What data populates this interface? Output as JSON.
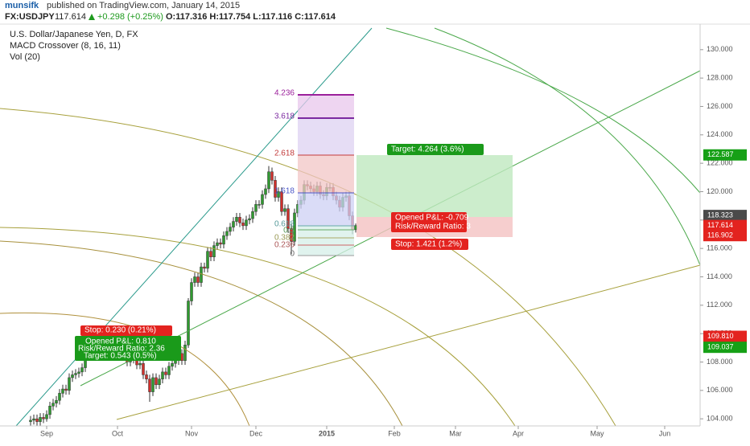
{
  "header": {
    "author": "munsifk",
    "published": "published on TradingView.com, January 14, 2015",
    "symbol": "FX:USDJPY",
    "last": 117.614,
    "change": "+0.298 (+0.25%)",
    "ohlc": "O:117.316 H:117.754 L:117.116 C:117.614"
  },
  "chart_data": {
    "type": "candlestick",
    "title": "U.S. Dollar/Japanese Yen, D, FX",
    "indicators": [
      "MACD Crossover (8, 16, 11)",
      "Vol (20)"
    ],
    "up_color": "#2f9a2f",
    "down_color": "#cf2f2b",
    "x": [
      0,
      1,
      2,
      3,
      4,
      5,
      6,
      7,
      8,
      9,
      10,
      11,
      12,
      13,
      14,
      15,
      16,
      17,
      18,
      19,
      20,
      21,
      22,
      23,
      24,
      25,
      26,
      27,
      28,
      29,
      30,
      31,
      32,
      33,
      34,
      35,
      36,
      37,
      38,
      39,
      40,
      41,
      42,
      43,
      44,
      45,
      46,
      47,
      48,
      49,
      50,
      51,
      52,
      53,
      54,
      55,
      56,
      57,
      58,
      59,
      60,
      61,
      62,
      63,
      64,
      65,
      66,
      67,
      68,
      69,
      70,
      71,
      72,
      73,
      74,
      75,
      76,
      77,
      78,
      79,
      80,
      81,
      82,
      83,
      84,
      85,
      86,
      87,
      88,
      89,
      90,
      91,
      92,
      93,
      94,
      95,
      96,
      97,
      98,
      99,
      100,
      101
    ],
    "open": [
      103.8,
      103.9,
      104.0,
      103.8,
      104.1,
      104.0,
      104.3,
      104.9,
      105.1,
      105.3,
      105.8,
      106.1,
      106.0,
      106.9,
      107.1,
      107.2,
      107.3,
      107.6,
      108.6,
      108.9,
      109.0,
      108.8,
      108.7,
      108.9,
      108.8,
      109.5,
      109.3,
      109.7,
      109.6,
      108.5,
      108.9,
      108.0,
      108.8,
      108.2,
      107.8,
      107.9,
      107.1,
      106.8,
      105.9,
      106.9,
      106.4,
      106.8,
      107.3,
      107.1,
      107.7,
      107.9,
      108.1,
      108.6,
      108.1,
      109.2,
      112.3,
      113.6,
      114.0,
      113.6,
      114.7,
      114.6,
      115.8,
      115.4,
      116.2,
      116.4,
      116.3,
      116.9,
      117.2,
      117.5,
      117.9,
      118.2,
      117.8,
      117.6,
      118.0,
      118.1,
      118.6,
      119.1,
      119.1,
      119.8,
      120.2,
      121.4,
      120.8,
      119.6,
      120.0,
      118.6,
      118.8,
      117.4,
      116.5,
      118.5,
      119.1,
      119.4,
      120.5,
      120.4,
      120.2,
      120.0,
      120.4,
      119.8,
      119.7,
      120.3,
      120.3,
      119.7,
      119.4,
      118.9,
      119.6,
      119.7,
      118.3,
      117.316
    ],
    "high": [
      104.2,
      104.3,
      104.3,
      104.4,
      104.4,
      104.6,
      105.2,
      105.4,
      105.6,
      106.1,
      106.4,
      106.4,
      107.2,
      107.4,
      107.5,
      107.6,
      107.9,
      108.9,
      109.2,
      109.4,
      109.3,
      109.1,
      109.2,
      109.2,
      109.8,
      109.8,
      110.0,
      110.1,
      109.9,
      109.2,
      109.2,
      109.1,
      109.1,
      108.5,
      108.2,
      108.2,
      107.4,
      107.1,
      107.2,
      107.2,
      107.1,
      107.6,
      107.6,
      108.0,
      108.2,
      108.4,
      108.9,
      108.9,
      109.5,
      112.5,
      113.9,
      114.3,
      114.3,
      115.0,
      115.0,
      116.1,
      116.1,
      116.5,
      116.7,
      116.7,
      117.2,
      117.5,
      117.8,
      118.2,
      118.5,
      118.5,
      118.1,
      118.3,
      118.4,
      118.9,
      119.4,
      119.4,
      120.1,
      120.5,
      121.8,
      121.7,
      121.1,
      120.3,
      120.3,
      119.1,
      119.1,
      117.7,
      118.8,
      119.4,
      119.7,
      120.8,
      120.8,
      120.7,
      120.5,
      120.7,
      120.7,
      120.1,
      120.6,
      120.6,
      120.6,
      120.0,
      119.7,
      119.9,
      120.0,
      120.0,
      118.6,
      117.754
    ],
    "low": [
      103.5,
      103.6,
      103.5,
      103.5,
      103.7,
      103.8,
      104.0,
      104.6,
      104.8,
      105.0,
      105.5,
      105.7,
      105.7,
      106.6,
      106.8,
      106.9,
      107.0,
      107.3,
      108.3,
      108.6,
      108.5,
      108.4,
      108.4,
      108.5,
      108.5,
      109.0,
      109.0,
      109.3,
      108.2,
      108.2,
      107.7,
      107.7,
      107.9,
      107.5,
      107.5,
      106.8,
      106.5,
      105.2,
      105.6,
      106.1,
      106.1,
      106.5,
      106.8,
      106.8,
      107.4,
      107.6,
      107.8,
      107.8,
      107.8,
      109.0,
      112.0,
      113.3,
      113.3,
      113.3,
      114.3,
      114.3,
      115.1,
      115.1,
      115.9,
      116.0,
      116.0,
      116.6,
      116.9,
      117.2,
      117.6,
      117.5,
      117.3,
      117.3,
      117.7,
      117.8,
      118.3,
      118.8,
      118.8,
      119.5,
      119.9,
      120.5,
      119.3,
      119.3,
      118.3,
      118.3,
      117.1,
      115.6,
      116.2,
      118.2,
      118.8,
      119.1,
      120.1,
      119.9,
      119.7,
      119.7,
      119.5,
      119.4,
      119.4,
      120.0,
      119.4,
      119.1,
      118.6,
      118.6,
      119.3,
      118.0,
      117.0,
      117.116
    ],
    "close": [
      103.9,
      104.0,
      103.8,
      104.1,
      104.0,
      104.3,
      104.9,
      105.1,
      105.3,
      105.8,
      106.1,
      106.0,
      106.9,
      107.1,
      107.2,
      107.3,
      107.6,
      108.6,
      108.9,
      109.0,
      108.8,
      108.7,
      108.9,
      108.8,
      109.5,
      109.3,
      109.7,
      109.6,
      108.5,
      108.9,
      108.0,
      108.8,
      108.2,
      107.8,
      107.9,
      107.1,
      106.8,
      105.9,
      106.9,
      106.4,
      106.8,
      107.3,
      107.1,
      107.7,
      107.9,
      108.1,
      108.6,
      108.1,
      109.2,
      112.3,
      113.6,
      114.0,
      113.6,
      114.7,
      114.6,
      115.8,
      115.4,
      116.2,
      116.4,
      116.3,
      116.9,
      117.2,
      117.5,
      117.9,
      118.2,
      117.8,
      117.6,
      118.0,
      118.1,
      118.6,
      119.1,
      119.1,
      119.8,
      120.2,
      121.4,
      120.8,
      119.6,
      120.0,
      118.6,
      118.8,
      117.4,
      116.5,
      118.5,
      119.1,
      119.4,
      120.5,
      120.4,
      120.2,
      120.0,
      120.4,
      119.8,
      119.7,
      120.3,
      120.3,
      119.7,
      119.4,
      118.9,
      119.6,
      119.7,
      118.3,
      117.316,
      117.614
    ],
    "xlim": [
      -9.5,
      208
    ],
    "xticks": [
      {
        "value": 5,
        "label": "Sep"
      },
      {
        "value": 27,
        "label": "Oct"
      },
      {
        "value": 50,
        "label": "Nov"
      },
      {
        "value": 70,
        "label": "Dec"
      },
      {
        "value": 92,
        "label": "2015"
      },
      {
        "value": 113,
        "label": "Feb"
      },
      {
        "value": 132,
        "label": "Mar"
      },
      {
        "value": 151.5,
        "label": "Apr"
      },
      {
        "value": 176,
        "label": "May"
      },
      {
        "value": 197,
        "label": "Jun"
      }
    ],
    "ylim": [
      103.5,
      131.8
    ],
    "yticks": [
      {
        "value": 104,
        "label": "104.000"
      },
      {
        "value": 106,
        "label": "106.000"
      },
      {
        "value": 108,
        "label": "108.000"
      },
      {
        "value": 110,
        "label": "110.000"
      },
      {
        "value": 112,
        "label": "112.000"
      },
      {
        "value": 114,
        "label": "114.000"
      },
      {
        "value": 116,
        "label": "116.000"
      },
      {
        "value": 118,
        "label": "118.000"
      },
      {
        "value": 120,
        "label": "120.000"
      },
      {
        "value": 122,
        "label": "122.000"
      },
      {
        "value": 124,
        "label": "124.000"
      },
      {
        "value": 126,
        "label": "126.000"
      },
      {
        "value": 128,
        "label": "128.000"
      },
      {
        "value": 130,
        "label": "130.000"
      }
    ],
    "price_tags": [
      {
        "value": 122.587,
        "label": "122.587",
        "color": "#16a016"
      },
      {
        "value": 118.323,
        "label": "118.323",
        "color": "#4a4a4a"
      },
      {
        "value": 117.614,
        "label": "117.614",
        "color": "#e3231f"
      },
      {
        "value": 116.902,
        "label": "116.902",
        "color": "#e3231f"
      },
      {
        "value": 109.81,
        "label": "109.810",
        "color": "#e3231f"
      },
      {
        "value": 109.037,
        "label": "109.037",
        "color": "#16a016"
      }
    ],
    "fib_levels": [
      4.236,
      3.618,
      2.618,
      1.618,
      0.618,
      0.5,
      0.382,
      0.236,
      0
    ],
    "position_short": {
      "target": "Target: 4.264 (3.6%)",
      "pnl": "Opened P&L: -0.709",
      "ratio": "Risk/Reward Ratio: 3",
      "stop": "Stop: 1.421 (1.2%)"
    },
    "position_long": {
      "stop": "Stop: 0.230 (0.21%)",
      "pnl": "Opened P&L: 0.810",
      "ratio": "Risk/Reward Ratio: 2.36",
      "target": "Target: 0.543 (0.5%)"
    }
  }
}
